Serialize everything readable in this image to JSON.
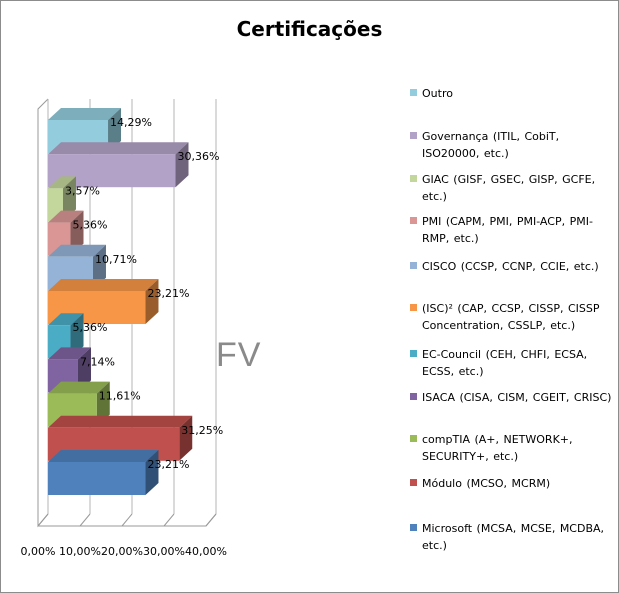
{
  "chart_data": {
    "type": "bar",
    "orientation": "horizontal",
    "three_d": true,
    "title": "Certificações",
    "watermark": "FV",
    "xlim": [
      0,
      40
    ],
    "x_ticks": [
      "0,00%",
      "10,00%",
      "20,00%",
      "30,00%",
      "40,00%"
    ],
    "grid": true,
    "legend_position": "right",
    "categories": [
      "Microsoft (MCSA, MCSE, MCDBA, etc.)",
      "Módulo (MCSO, MCRM)",
      "compTIA (A+, NETWORK+, SECURITY+, etc.)",
      "ISACA (CISA, CISM, CGEIT, CRISC)",
      "EC-Council (CEH, CHFI, ECSA, ECSS, etc.)",
      "(ISC)² (CAP, CCSP, CISSP, CISSP Concentration, CSSLP, etc.)",
      "CISCO (CCSP, CCNP, CCIE, etc.)",
      "PMI (CAPM, PMI, PMI-ACP, PMI-RMP, etc.)",
      "GIAC (GISF, GSEC, GISP, GCFE, etc.)",
      "Governança (ITIL, CobiT, ISO20000, etc.)",
      "Outro"
    ],
    "values": [
      23.21,
      31.25,
      11.61,
      7.14,
      5.36,
      23.21,
      10.71,
      5.36,
      3.57,
      30.36,
      14.29
    ],
    "value_labels": [
      "23,21%",
      "31,25%",
      "11,61%",
      "7,14%",
      "5,36%",
      "23,21%",
      "10,71%",
      "5,36%",
      "3,57%",
      "30,36%",
      "14,29%"
    ],
    "colors": [
      "#4F81BD",
      "#C0504D",
      "#9BBB59",
      "#8064A2",
      "#4BACC6",
      "#F79646",
      "#95B3D7",
      "#D99694",
      "#C3D69B",
      "#B3A2C7",
      "#93CDDD"
    ]
  },
  "legend": [
    {
      "label": "Outro",
      "color": "#93CDDD"
    },
    {
      "label": "Governança (ITIL, CobiT, ISO20000, etc.)",
      "color": "#B3A2C7"
    },
    {
      "label": "GIAC (GISF, GSEC, GISP, GCFE, etc.)",
      "color": "#C3D69B"
    },
    {
      "label": "PMI (CAPM, PMI, PMI-ACP, PMI-RMP, etc.)",
      "color": "#D99694"
    },
    {
      "label": "CISCO (CCSP, CCNP, CCIE, etc.)",
      "color": "#95B3D7"
    },
    {
      "label": "(ISC)² (CAP, CCSP, CISSP, CISSP Concentration, CSSLP, etc.)",
      "color": "#F79646"
    },
    {
      "label": "EC-Council (CEH, CHFI, ECSA, ECSS, etc.)",
      "color": "#4BACC6"
    },
    {
      "label": "ISACA (CISA, CISM, CGEIT, CRISC)",
      "color": "#8064A2"
    },
    {
      "label": "compTIA (A+, NETWORK+, SECURITY+, etc.)",
      "color": "#9BBB59"
    },
    {
      "label": "Módulo (MCSO, MCRM)",
      "color": "#C0504D"
    },
    {
      "label": "Microsoft (MCSA, MCSE, MCDBA, etc.)",
      "color": "#4F81BD"
    }
  ]
}
